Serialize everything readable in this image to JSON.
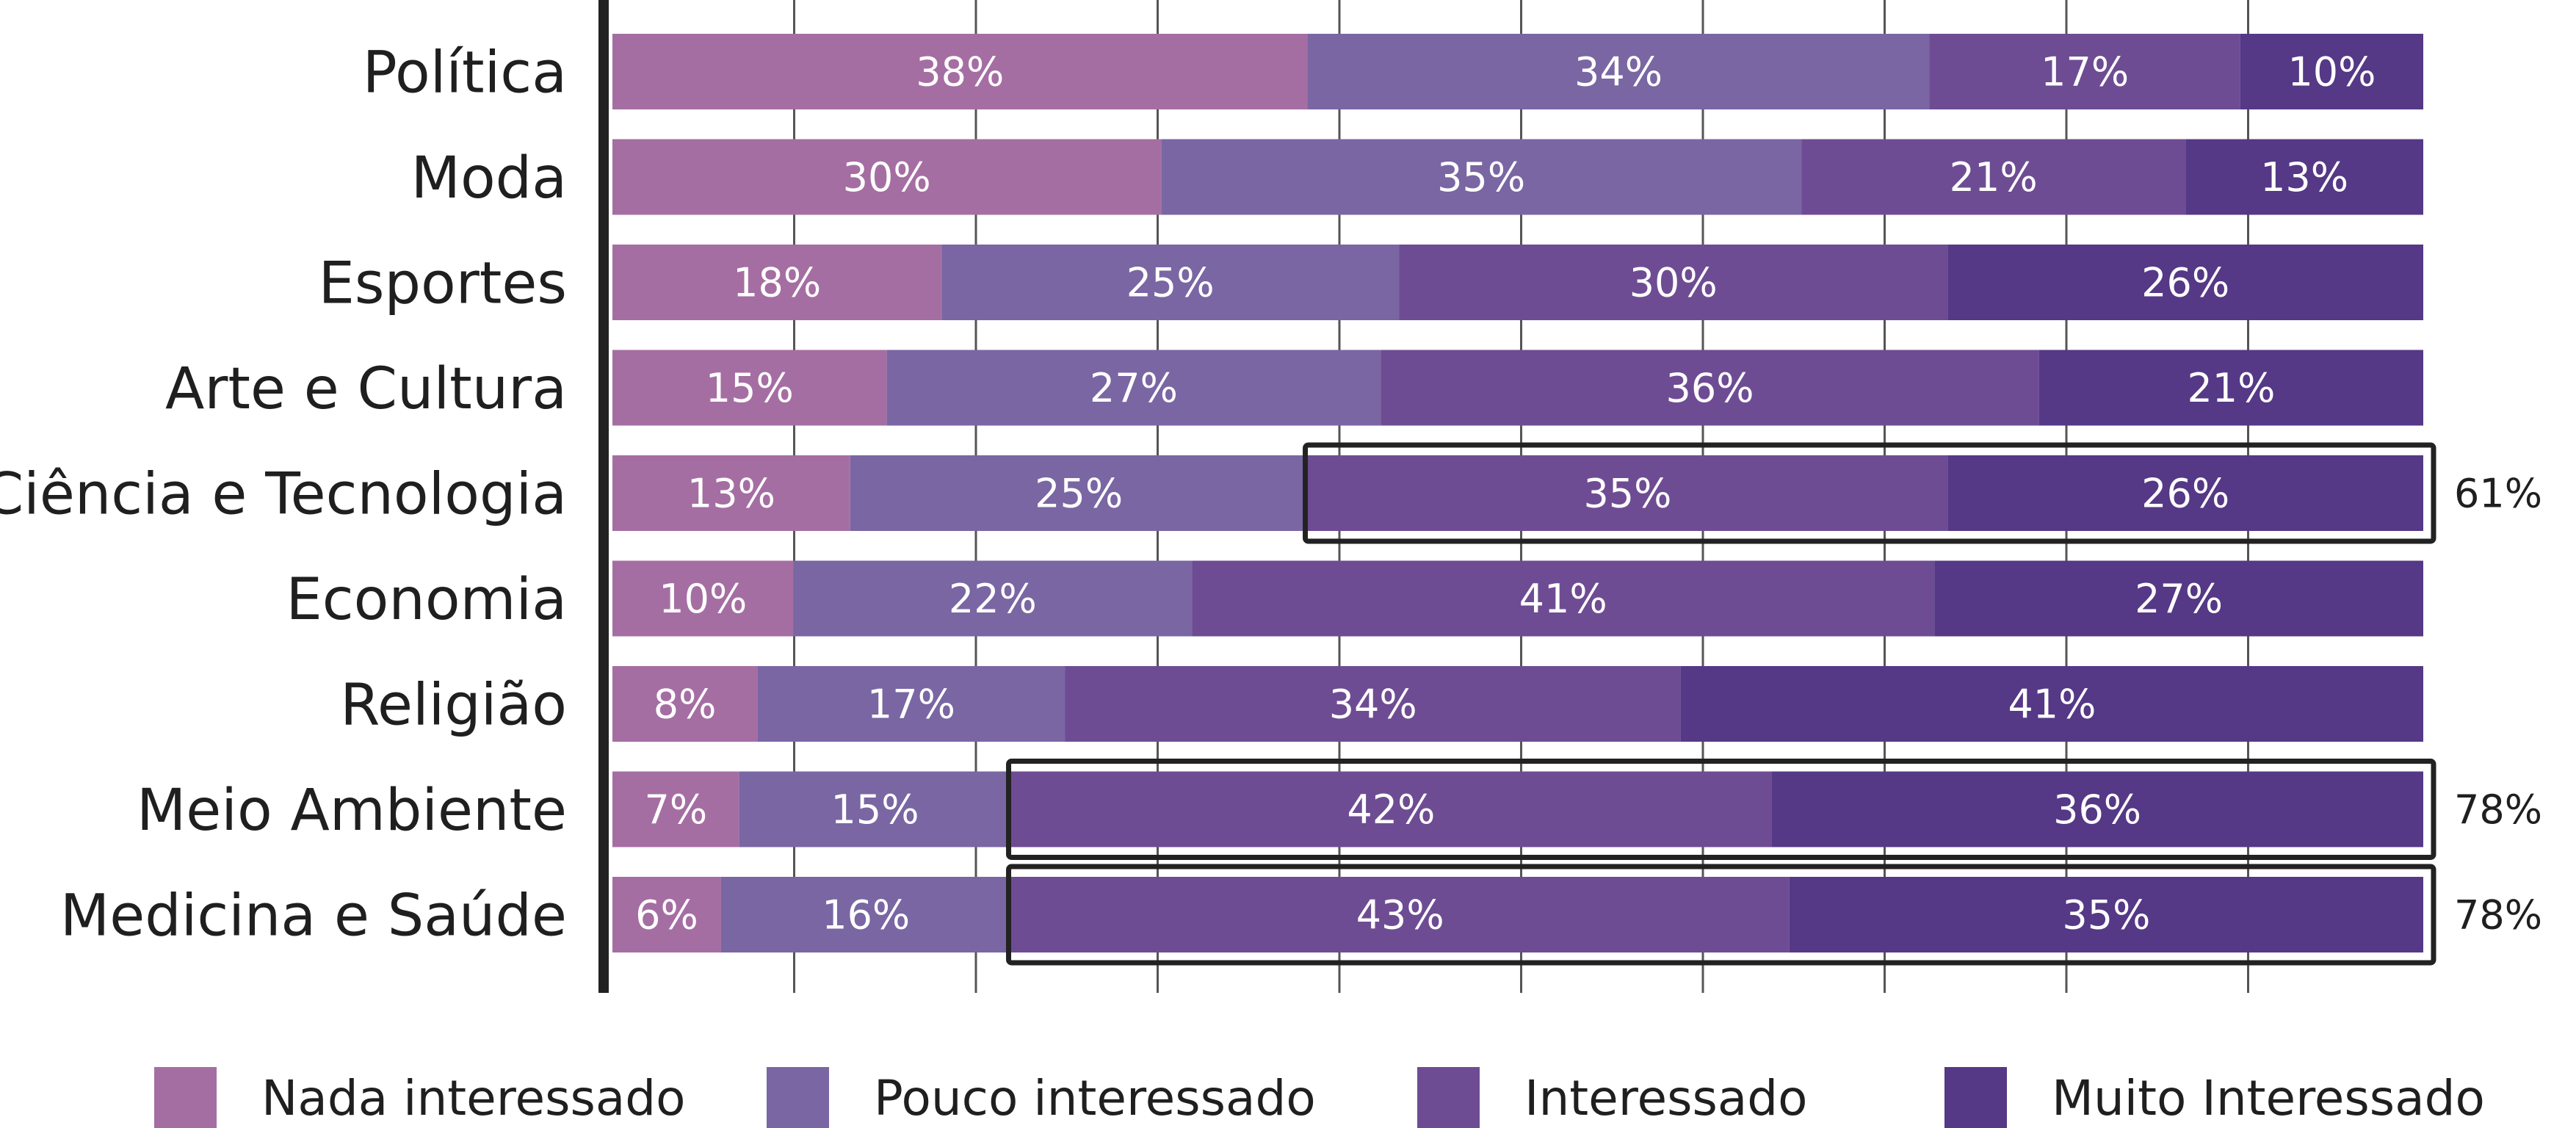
{
  "chart_data": {
    "type": "bar",
    "orientation": "horizontal",
    "stacked": true,
    "categories": [
      "Política",
      "Moda",
      "Esportes",
      "Arte e Cultura",
      "Ciência e Tecnologia",
      "Economia",
      "Religião",
      "Meio Ambiente",
      "Medicina e Saúde"
    ],
    "series": [
      {
        "name": "Nada interessado",
        "color": "#a56ea3",
        "values": [
          38,
          30,
          18,
          15,
          13,
          10,
          8,
          7,
          6
        ],
        "labels": [
          "38%",
          "30%",
          "18%",
          "15%",
          "13%",
          "10%",
          "8%",
          "7%",
          "6%"
        ]
      },
      {
        "name": "Pouco interessado",
        "color": "#7966a3",
        "values": [
          34,
          35,
          25,
          27,
          25,
          22,
          17,
          15,
          16
        ],
        "labels": [
          "34%",
          "35%",
          "25%",
          "27%",
          "25%",
          "22%",
          "17%",
          "15%",
          "16%"
        ]
      },
      {
        "name": "Interessado",
        "color": "#6e4c93",
        "values": [
          17,
          21,
          30,
          36,
          35,
          41,
          34,
          42,
          43
        ],
        "labels": [
          "17%",
          "21%",
          "30%",
          "36%",
          "35%",
          "41%",
          "34%",
          "42%",
          "43%"
        ]
      },
      {
        "name": "Muito Interessado",
        "color": "#553886",
        "values": [
          10,
          13,
          26,
          21,
          26,
          27,
          41,
          36,
          35
        ],
        "labels": [
          "10%",
          "13%",
          "26%",
          "21%",
          "26%",
          "27%",
          "41%",
          "36%",
          "35%"
        ]
      }
    ],
    "highlights": [
      {
        "category": "Ciência e Tecnologia",
        "total_label": "61%"
      },
      {
        "category": "Meio Ambiente",
        "total_label": "78%"
      },
      {
        "category": "Medicina e Saúde",
        "total_label": "78%"
      }
    ],
    "legend_position": "bottom",
    "grid": true,
    "title": "",
    "xlabel": "",
    "ylabel": ""
  }
}
